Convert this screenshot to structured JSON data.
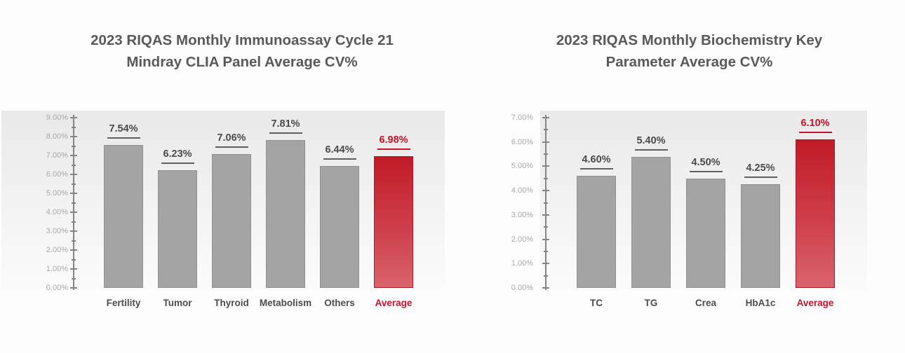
{
  "titles": {
    "left_line1": "2023 RIQAS Monthly Immunoassay Cycle 21",
    "left_line2": "Mindray CLIA Panel Average CV%",
    "right_line1": "2023 RIQAS Monthly Biochemistry Key",
    "right_line2": "Parameter Average CV%"
  },
  "colors": {
    "title_text": "#595959",
    "bar_gray": "#a4a4a4",
    "bar_gray_border": "#909090",
    "bar_red_top": "#c01b27",
    "bar_red_bottom": "#d9646c",
    "accent_red": "#c5132b",
    "axis_gray": "#848484",
    "ytick_label_gray": "#a9a9a9",
    "value_label_gray": "#4a4a4a",
    "panel_gradient_top": "#e9e9e9",
    "panel_gradient_bottom": "#fbfbfb"
  },
  "chart_data": [
    {
      "type": "bar",
      "title": "2023 RIQAS Monthly Immunoassay Cycle 21 Mindray CLIA Panel Average CV%",
      "categories": [
        "Fertility",
        "Tumor",
        "Thyroid",
        "Metabolism",
        "Others",
        "Average"
      ],
      "values": [
        7.54,
        6.23,
        7.06,
        7.81,
        6.44,
        6.98
      ],
      "value_labels": [
        "7.54%",
        "6.23%",
        "7.06%",
        "7.81%",
        "6.44%",
        "6.98%"
      ],
      "highlight_category": "Average",
      "highlight_index": 5,
      "xlabel": "",
      "ylabel": "",
      "ylim": [
        0,
        9
      ],
      "ytick_interval": 1,
      "minor_tick_interval": 0.5,
      "ytick_labels_top_down": [
        "9.00%",
        "8.00%",
        "7.00%",
        "6.00%",
        "5.00%",
        "4.00%",
        "3.00%",
        "2.00%",
        "1.00%",
        "0.00%"
      ],
      "grid": "off",
      "legend": "none",
      "value_labels_underlined": true
    },
    {
      "type": "bar",
      "title": "2023 RIQAS Monthly Biochemistry Key Parameter Average CV%",
      "categories": [
        "TC",
        "TG",
        "Crea",
        "HbA1c",
        "Average"
      ],
      "values": [
        4.6,
        5.4,
        4.5,
        4.25,
        6.1
      ],
      "value_labels": [
        "4.60%",
        "5.40%",
        "4.50%",
        "4.25%",
        "6.10%"
      ],
      "highlight_category": "Average",
      "highlight_index": 4,
      "xlabel": "",
      "ylabel": "",
      "ylim": [
        0,
        7
      ],
      "ytick_interval": 1,
      "minor_tick_interval": 0.5,
      "ytick_labels_top_down": [
        "7.00%",
        "6.00%",
        "5.00%",
        "4.00%",
        "3.00%",
        "2.00%",
        "1.00%",
        "0.00%"
      ],
      "grid": "off",
      "legend": "none",
      "value_labels_underlined": true
    }
  ]
}
